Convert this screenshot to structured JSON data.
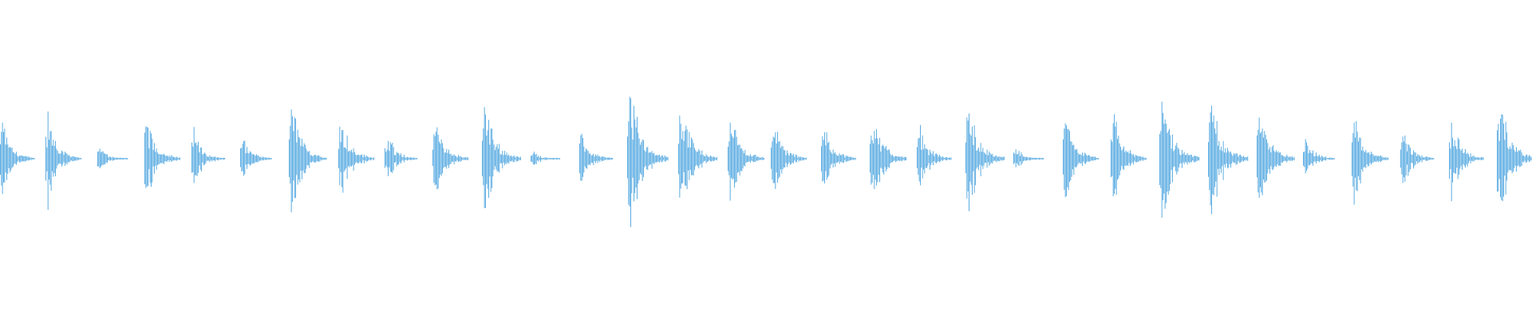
{
  "chart_data": {
    "type": "waveform",
    "title": "",
    "xlabel": "",
    "ylabel": "",
    "ylim": [
      -1,
      1
    ],
    "grid": false,
    "color": "#5dade2",
    "background": "#ffffff",
    "burst_count": 32,
    "peak_amplitudes": [
      0.26,
      0.34,
      0.09,
      0.32,
      0.21,
      0.16,
      0.42,
      0.34,
      0.19,
      0.31,
      0.45,
      0.06,
      0.21,
      0.53,
      0.45,
      0.35,
      0.31,
      0.28,
      0.37,
      0.26,
      0.43,
      0.09,
      0.32,
      0.34,
      0.5,
      0.49,
      0.41,
      0.16,
      0.36,
      0.23,
      0.29,
      0.48
    ]
  }
}
